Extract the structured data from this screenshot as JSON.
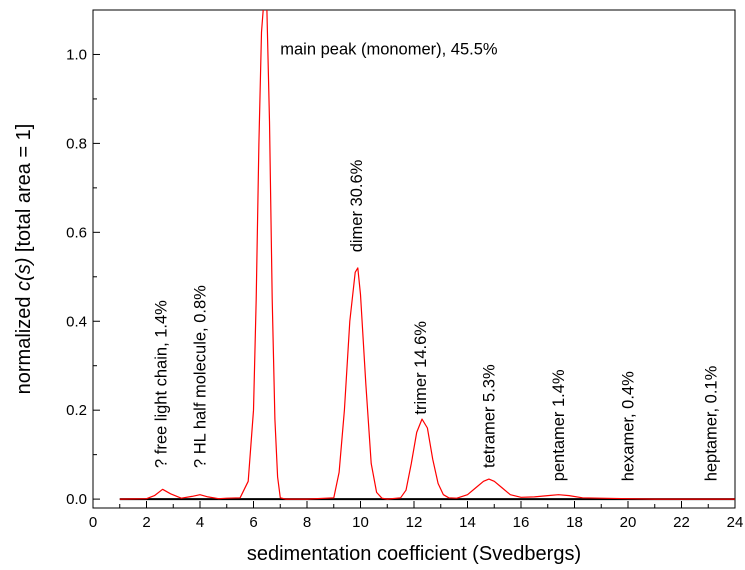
{
  "chart_data": {
    "type": "line",
    "title": "",
    "xlabel": "sedimentation coefficient (Svedbergs)",
    "ylabel": {
      "prefix": "normalized ",
      "italic": "c(s)",
      "suffix": " [total area = 1]"
    },
    "xlim": [
      0,
      24
    ],
    "ylim": [
      -0.02,
      1.1
    ],
    "x_ticks": [
      "0",
      "2",
      "4",
      "6",
      "8",
      "10",
      "12",
      "14",
      "16",
      "18",
      "20",
      "22",
      "24"
    ],
    "y_ticks": [
      "0.0",
      "0.2",
      "0.4",
      "0.6",
      "0.8",
      "1.0"
    ],
    "grid": false,
    "series": [
      {
        "color": "#ff0000",
        "x": [
          1.0,
          2.0,
          2.3,
          2.6,
          2.9,
          3.3,
          3.7,
          4.0,
          4.3,
          4.7,
          5.0,
          5.5,
          5.8,
          6.0,
          6.1,
          6.2,
          6.3,
          6.4,
          6.5,
          6.6,
          6.7,
          6.8,
          6.9,
          7.0,
          7.2,
          8.0,
          9.0,
          9.2,
          9.4,
          9.6,
          9.8,
          9.9,
          10.0,
          10.2,
          10.4,
          10.6,
          10.8,
          11.0,
          11.5,
          11.7,
          11.9,
          12.1,
          12.3,
          12.5,
          12.7,
          12.9,
          13.1,
          13.3,
          13.6,
          14.0,
          14.3,
          14.6,
          14.8,
          15.0,
          15.3,
          15.6,
          16.0,
          16.5,
          17.0,
          17.4,
          17.8,
          18.3,
          19.0,
          20.0,
          21.0,
          22.0,
          23.0,
          24.0
        ],
        "y": [
          0.0,
          0.001,
          0.008,
          0.022,
          0.012,
          0.002,
          0.006,
          0.01,
          0.005,
          0.001,
          0.002,
          0.003,
          0.04,
          0.2,
          0.45,
          0.8,
          1.05,
          1.13,
          1.1,
          0.85,
          0.45,
          0.18,
          0.05,
          0.003,
          0.0,
          0.0,
          0.003,
          0.06,
          0.2,
          0.4,
          0.51,
          0.52,
          0.46,
          0.26,
          0.08,
          0.015,
          0.002,
          0.0,
          0.003,
          0.02,
          0.08,
          0.15,
          0.18,
          0.16,
          0.09,
          0.035,
          0.01,
          0.003,
          0.002,
          0.01,
          0.025,
          0.04,
          0.045,
          0.04,
          0.025,
          0.01,
          0.004,
          0.005,
          0.008,
          0.01,
          0.008,
          0.003,
          0.002,
          0.001,
          0.0,
          0.0,
          0.0,
          0.0
        ]
      }
    ],
    "annotations": [
      {
        "text": "main peak (monomer), 45.5%",
        "x": 7.0,
        "y": 1.0,
        "rotate": false
      },
      {
        "text": "? free light chain, 1.4%",
        "x": 2.75,
        "y": 0.07,
        "rotate": true
      },
      {
        "text": "? HL half molecule, 0.8%",
        "x": 4.2,
        "y": 0.07,
        "rotate": true
      },
      {
        "text": "dimer 30.6%",
        "x": 10.05,
        "y": 0.555,
        "rotate": true
      },
      {
        "text": "trimer 14.6%",
        "x": 12.45,
        "y": 0.19,
        "rotate": true
      },
      {
        "text": "tetramer 5.3%",
        "x": 15.0,
        "y": 0.07,
        "rotate": true
      },
      {
        "text": "pentamer 1.4%",
        "x": 17.6,
        "y": 0.04,
        "rotate": true
      },
      {
        "text": "hexamer, 0.4%",
        "x": 20.2,
        "y": 0.04,
        "rotate": true
      },
      {
        "text": "heptamer, 0.1%",
        "x": 23.3,
        "y": 0.04,
        "rotate": true
      }
    ]
  }
}
